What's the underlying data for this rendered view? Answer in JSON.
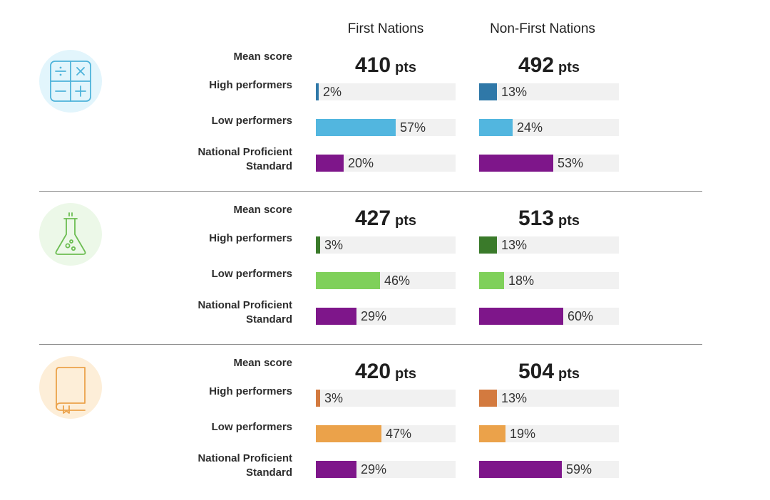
{
  "columns": [
    "First Nations",
    "Non-First Nations"
  ],
  "row_labels": {
    "mean": "Mean score",
    "high": "High performers",
    "low": "Low performers",
    "nps": [
      "National Proficient",
      "Standard"
    ]
  },
  "unit": "pts",
  "chart_data": [
    {
      "type": "bar",
      "subject_icon": "calculator-icon",
      "colors": {
        "high": "#2f78a8",
        "low": "#52b6df",
        "nps": "#7e168a",
        "icon_bg": "#e2f5fc",
        "icon_line": "#4eb3da"
      },
      "mean_score": [
        410,
        492
      ],
      "categories": [
        "High performers",
        "Low performers",
        "National Proficient Standard"
      ],
      "series": [
        {
          "name": "First Nations",
          "values": [
            2,
            57,
            20
          ]
        },
        {
          "name": "Non-First Nations",
          "values": [
            13,
            24,
            53
          ]
        }
      ],
      "xlim": [
        0,
        100
      ]
    },
    {
      "type": "bar",
      "subject_icon": "flask-icon",
      "colors": {
        "high": "#3a7a2a",
        "low": "#7fd05a",
        "nps": "#7e168a",
        "icon_bg": "#ecf8e8",
        "icon_line": "#6cbd52"
      },
      "mean_score": [
        427,
        513
      ],
      "categories": [
        "High performers",
        "Low performers",
        "National Proficient Standard"
      ],
      "series": [
        {
          "name": "First Nations",
          "values": [
            3,
            46,
            29
          ]
        },
        {
          "name": "Non-First Nations",
          "values": [
            13,
            18,
            60
          ]
        }
      ],
      "xlim": [
        0,
        100
      ]
    },
    {
      "type": "bar",
      "subject_icon": "book-icon",
      "colors": {
        "high": "#d37a3f",
        "low": "#eba24a",
        "nps": "#7e168a",
        "icon_bg": "#fdeed8",
        "icon_line": "#eba24a"
      },
      "mean_score": [
        420,
        504
      ],
      "categories": [
        "High performers",
        "Low performers",
        "National Proficient Standard"
      ],
      "series": [
        {
          "name": "First Nations",
          "values": [
            3,
            47,
            29
          ]
        },
        {
          "name": "Non-First Nations",
          "values": [
            13,
            19,
            59
          ]
        }
      ],
      "xlim": [
        0,
        100
      ]
    }
  ]
}
